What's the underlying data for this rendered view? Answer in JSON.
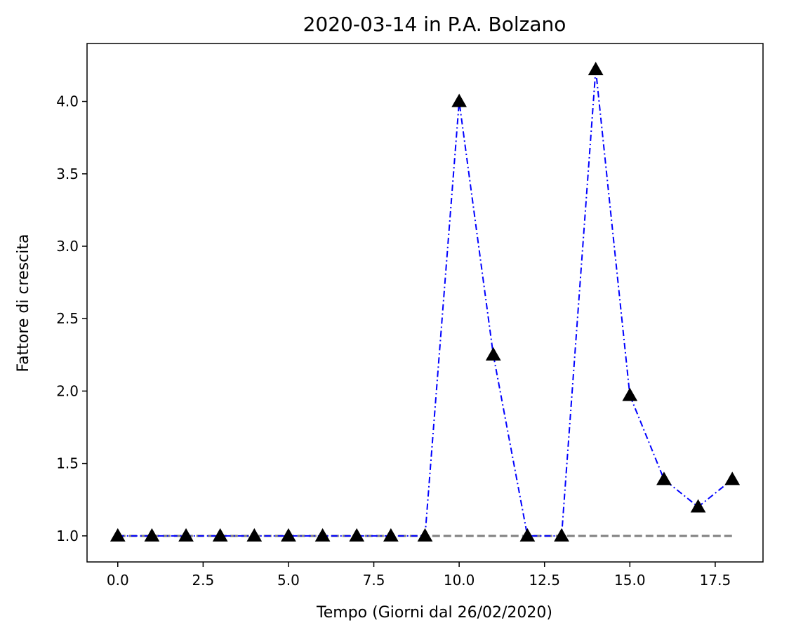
{
  "chart_data": {
    "type": "line",
    "title": "2020-03-14 in P.A. Bolzano",
    "xlabel": "Tempo (Giorni dal 26/02/2020)",
    "ylabel": "Fattore di crescita",
    "xlim": [
      -0.9,
      18.9
    ],
    "ylim": [
      0.82,
      4.4
    ],
    "xticks": [
      0.0,
      2.5,
      5.0,
      7.5,
      10.0,
      12.5,
      15.0,
      17.5
    ],
    "xtick_labels": [
      "0.0",
      "2.5",
      "5.0",
      "7.5",
      "10.0",
      "12.5",
      "15.0",
      "17.5"
    ],
    "yticks": [
      1.0,
      1.5,
      2.0,
      2.5,
      3.0,
      3.5,
      4.0
    ],
    "ytick_labels": [
      "1.0",
      "1.5",
      "2.0",
      "2.5",
      "3.0",
      "3.5",
      "4.0"
    ],
    "grid": false,
    "series": [
      {
        "style": "dash-dot line with triangle markers",
        "color": "#0000ff",
        "marker_color": "#000000",
        "x": [
          0,
          1,
          2,
          3,
          4,
          5,
          6,
          7,
          8,
          9,
          10,
          11,
          12,
          13,
          14,
          15,
          16,
          17,
          18
        ],
        "y": [
          1.0,
          1.0,
          1.0,
          1.0,
          1.0,
          1.0,
          1.0,
          1.0,
          1.0,
          1.0,
          4.0,
          2.25,
          1.0,
          1.0,
          4.22,
          1.97,
          1.39,
          1.2,
          1.39
        ]
      },
      {
        "style": "dashed reference line",
        "color": "#808080",
        "x": [
          0,
          18
        ],
        "y": [
          1.0,
          1.0
        ]
      }
    ]
  }
}
